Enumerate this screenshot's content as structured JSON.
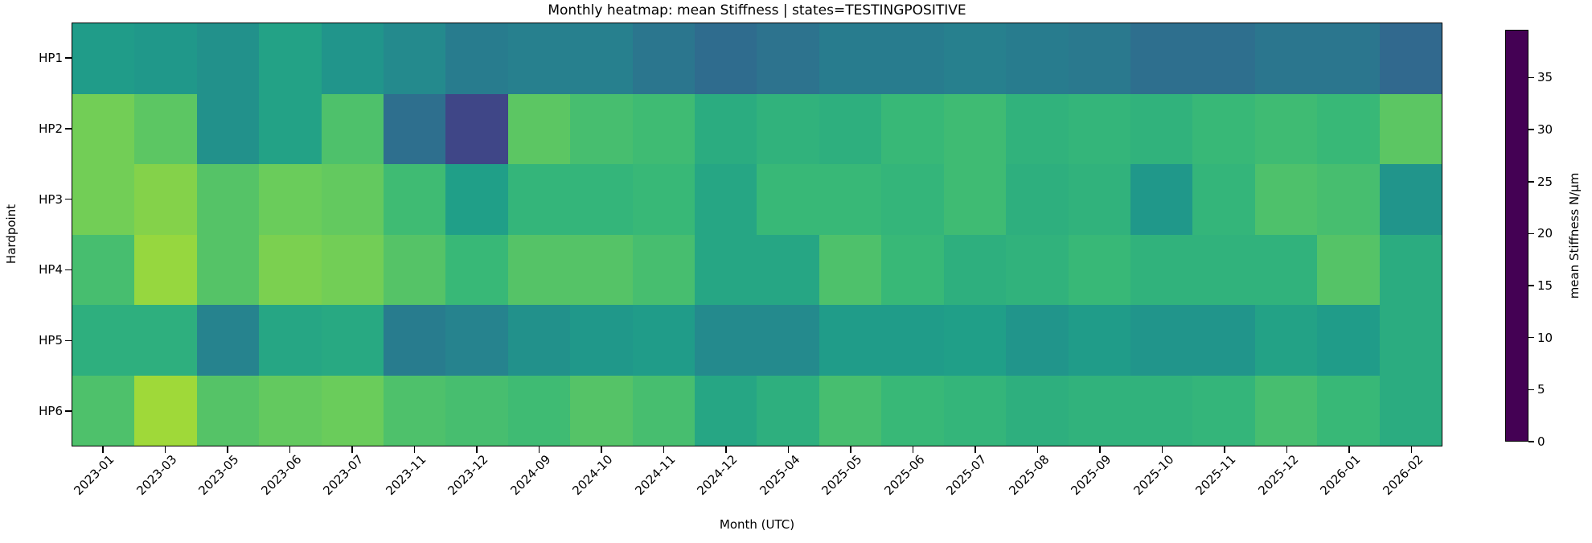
{
  "chart_data": {
    "type": "heatmap",
    "title": "Monthly heatmap: mean Stiffness | states=TESTINGPOSITIVE",
    "xlabel": "Month (UTC)",
    "ylabel": "Hardpoint",
    "colormap": "viridis",
    "vmin": 0,
    "vmax": 39.6,
    "x_categories": [
      "2023-01",
      "2023-03",
      "2023-05",
      "2023-06",
      "2023-07",
      "2023-11",
      "2023-12",
      "2024-09",
      "2024-10",
      "2024-11",
      "2024-12",
      "2025-04",
      "2025-05",
      "2025-06",
      "2025-07",
      "2025-08",
      "2025-09",
      "2025-10",
      "2025-11",
      "2025-12",
      "2026-01",
      "2026-02"
    ],
    "y_categories": [
      "HP1",
      "HP2",
      "HP3",
      "HP4",
      "HP5",
      "HP6"
    ],
    "values": [
      [
        19.5,
        19,
        18,
        20.5,
        18.5,
        17,
        15,
        15.5,
        15.5,
        14,
        12.5,
        13.5,
        15,
        15,
        15.5,
        15,
        14.5,
        13,
        13,
        14,
        14,
        12
      ],
      [
        28,
        26.5,
        18,
        20.5,
        25.5,
        13,
        7.5,
        26.5,
        25,
        24.5,
        22,
        23,
        22.5,
        24,
        24.5,
        23,
        23.5,
        23,
        24,
        24.5,
        24,
        26.5
      ],
      [
        28,
        29,
        26,
        27.5,
        27,
        24.5,
        20,
        23.5,
        23.5,
        24,
        21,
        24,
        24,
        23.5,
        24.5,
        22.5,
        23,
        19,
        23.5,
        25.5,
        25,
        18.5
      ],
      [
        25,
        30,
        26,
        28.5,
        28,
        26,
        24,
        26,
        26,
        25,
        21,
        21,
        25.5,
        24,
        22.5,
        23,
        24,
        23,
        23,
        23,
        26,
        22
      ],
      [
        22.5,
        22.5,
        16,
        21,
        21.5,
        15,
        16,
        18,
        19,
        19.5,
        17,
        17,
        19.5,
        19.5,
        20,
        18.5,
        19.5,
        18.5,
        18.5,
        20.5,
        19.5,
        22
      ],
      [
        25.5,
        30.5,
        26,
        27,
        27.5,
        25.5,
        25,
        24.5,
        26,
        25,
        21,
        22.5,
        25,
        24,
        23.5,
        22.5,
        23,
        23,
        23.5,
        25,
        24,
        22
      ]
    ],
    "colorbar": {
      "label": "mean Stiffness N/μm",
      "ticks": [
        0,
        5,
        10,
        15,
        20,
        25,
        30,
        35
      ]
    },
    "legend": "none",
    "grid": false
  }
}
